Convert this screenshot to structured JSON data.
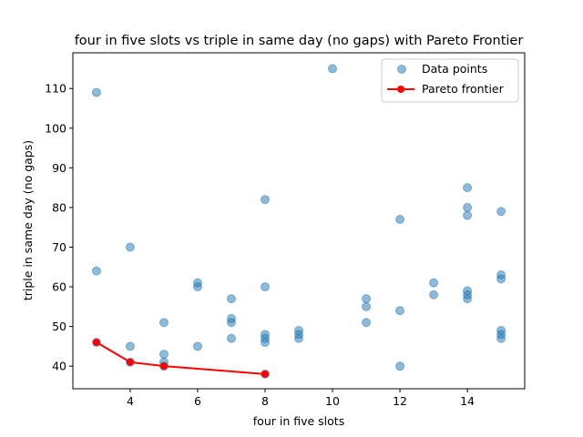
{
  "chart_data": {
    "type": "scatter",
    "title": "four in five slots vs triple in same day (no gaps) with Pareto Frontier",
    "xlabel": "four in five slots",
    "ylabel": "triple in same day (no gaps)",
    "xlim": [
      2.3,
      15.7
    ],
    "ylim": [
      34.3,
      119.0
    ],
    "xticks": [
      4,
      6,
      8,
      10,
      12,
      14
    ],
    "yticks": [
      40,
      50,
      60,
      70,
      80,
      90,
      100,
      110
    ],
    "grid": false,
    "legend_position": "top-right",
    "series": [
      {
        "name": "Data points",
        "kind": "scatter",
        "color": "#1f77b4",
        "points": [
          [
            3,
            109
          ],
          [
            3,
            64
          ],
          [
            3,
            46
          ],
          [
            4,
            70
          ],
          [
            4,
            45
          ],
          [
            4,
            41
          ],
          [
            5,
            51
          ],
          [
            5,
            43
          ],
          [
            5,
            41
          ],
          [
            5,
            40
          ],
          [
            6,
            61
          ],
          [
            6,
            60
          ],
          [
            6,
            45
          ],
          [
            7,
            57
          ],
          [
            7,
            52
          ],
          [
            7,
            51
          ],
          [
            7,
            47
          ],
          [
            8,
            82
          ],
          [
            8,
            60
          ],
          [
            8,
            48
          ],
          [
            8,
            47
          ],
          [
            8,
            46
          ],
          [
            8,
            38
          ],
          [
            9,
            49
          ],
          [
            9,
            48
          ],
          [
            9,
            47
          ],
          [
            10,
            115
          ],
          [
            11,
            57
          ],
          [
            11,
            55
          ],
          [
            11,
            51
          ],
          [
            12,
            77
          ],
          [
            12,
            54
          ],
          [
            12,
            40
          ],
          [
            13,
            61
          ],
          [
            13,
            58
          ],
          [
            14,
            85
          ],
          [
            14,
            80
          ],
          [
            14,
            78
          ],
          [
            14,
            59
          ],
          [
            14,
            58
          ],
          [
            14,
            57
          ],
          [
            15,
            79
          ],
          [
            15,
            63
          ],
          [
            15,
            62
          ],
          [
            15,
            49
          ],
          [
            15,
            48
          ],
          [
            15,
            47
          ]
        ]
      },
      {
        "name": "Pareto frontier",
        "kind": "line",
        "color": "#ff0000",
        "points": [
          [
            3,
            46
          ],
          [
            4,
            41
          ],
          [
            5,
            40
          ],
          [
            8,
            38
          ]
        ]
      }
    ]
  }
}
